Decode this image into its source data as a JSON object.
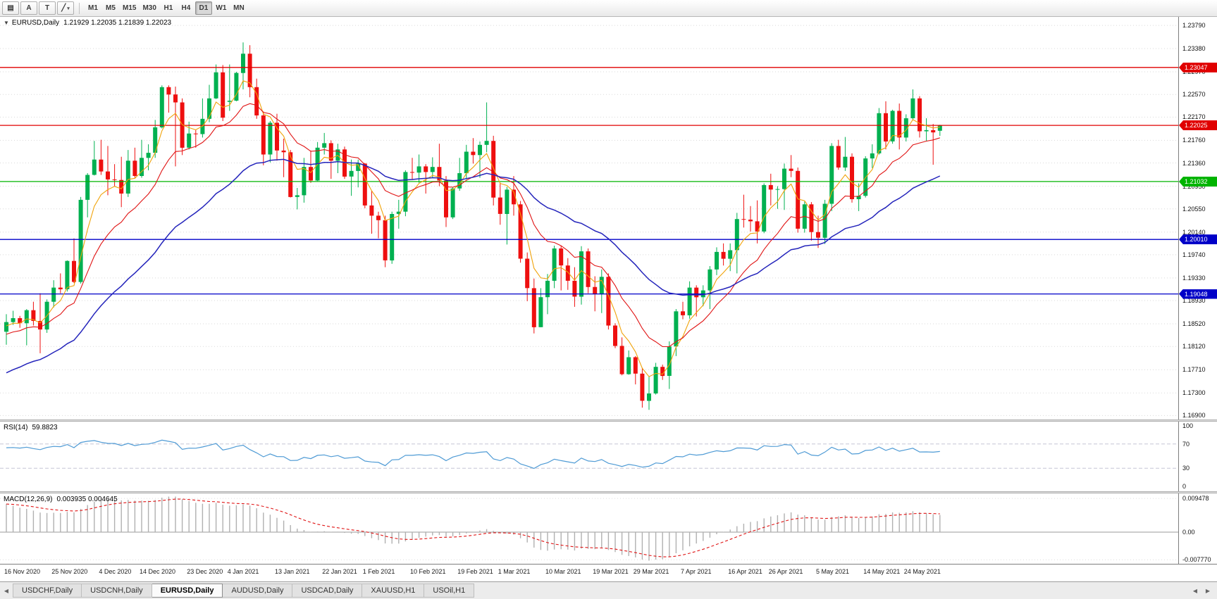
{
  "toolbar": {
    "icons": [
      {
        "name": "chart-window-menu-icon",
        "glyph": "▤"
      },
      {
        "name": "arrow-tool-icon",
        "glyph": "A"
      },
      {
        "name": "text-tool-icon",
        "glyph": "T"
      },
      {
        "name": "drawing-tool-icon",
        "glyph": "╱"
      },
      {
        "name": "chevron-down-icon",
        "glyph": "▾"
      }
    ],
    "timeframes": [
      "M1",
      "M5",
      "M15",
      "M30",
      "H1",
      "H4",
      "D1",
      "W1",
      "MN"
    ],
    "active_timeframe": "D1"
  },
  "chart": {
    "marker_icon": "▼",
    "symbol_label": "EURUSD,Daily",
    "ohlc": "1.21929 1.22035 1.21839 1.22023",
    "up_color": "#00b050",
    "down_color": "#ee0f0f",
    "price_min": 1.1683,
    "price_max": 1.2394,
    "price_axis_ticks": [
      "1.23790",
      "1.23380",
      "1.22970",
      "1.22570",
      "1.22170",
      "1.21760",
      "1.21360",
      "1.20950",
      "1.20550",
      "1.20140",
      "1.19740",
      "1.19330",
      "1.18930",
      "1.18520",
      "1.18120",
      "1.17710",
      "1.17300",
      "1.16900"
    ],
    "levels": [
      {
        "label": "1.23047",
        "price": 1.23047,
        "color": "#e00000"
      },
      {
        "label": "1.22025",
        "price": 1.22025,
        "color": "#e00000"
      },
      {
        "label": "1.21032",
        "price": 1.21032,
        "color": "#00b400"
      },
      {
        "label": "1.20010",
        "price": 1.2001,
        "color": "#0000c8"
      },
      {
        "label": "1.19048",
        "price": 1.19048,
        "color": "#0000c8"
      }
    ],
    "moving_averages": [
      {
        "period": 5,
        "seed": 1.1845,
        "color": "#f0a30a",
        "width": 1.1
      },
      {
        "period": 13,
        "seed": 1.183,
        "color": "#e01414",
        "width": 1.1
      },
      {
        "period": 34,
        "seed": 1.176,
        "color": "#2424bb",
        "width": 1.5
      }
    ],
    "date_axis": [
      [
        0,
        "16 Nov 2020"
      ],
      [
        7,
        "25 Nov 2020"
      ],
      [
        14,
        "4 Dec 2020"
      ],
      [
        20,
        "14 Dec 2020"
      ],
      [
        27,
        "23 Dec 2020"
      ],
      [
        33,
        "4 Jan 2021"
      ],
      [
        40,
        "13 Jan 2021"
      ],
      [
        47,
        "22 Jan 2021"
      ],
      [
        53,
        "1 Feb 2021"
      ],
      [
        60,
        "10 Feb 2021"
      ],
      [
        67,
        "19 Feb 2021"
      ],
      [
        73,
        "1 Mar 2021"
      ],
      [
        80,
        "10 Mar 2021"
      ],
      [
        87,
        "19 Mar 2021"
      ],
      [
        93,
        "29 Mar 2021"
      ],
      [
        100,
        "7 Apr 2021"
      ],
      [
        107,
        "16 Apr 2021"
      ],
      [
        113,
        "26 Apr 2021"
      ],
      [
        120,
        "5 May 2021"
      ],
      [
        127,
        "14 May 2021"
      ],
      [
        133,
        "24 May 2021"
      ]
    ],
    "candles": [
      [
        1.1838,
        1.1869,
        1.1815,
        1.1855
      ],
      [
        1.1855,
        1.1875,
        1.185,
        1.1862
      ],
      [
        1.1862,
        1.1866,
        1.1845,
        1.1853
      ],
      [
        1.1853,
        1.1878,
        1.1814,
        1.1876
      ],
      [
        1.1876,
        1.1891,
        1.1849,
        1.1857
      ],
      [
        1.1857,
        1.1906,
        1.18,
        1.1842
      ],
      [
        1.1842,
        1.1895,
        1.1836,
        1.1891
      ],
      [
        1.1891,
        1.1929,
        1.1881,
        1.1916
      ],
      [
        1.1916,
        1.1941,
        1.1906,
        1.1913
      ],
      [
        1.1913,
        1.1964,
        1.1909,
        1.1963
      ],
      [
        1.1963,
        1.2003,
        1.1924,
        1.1926
      ],
      [
        1.1926,
        1.2076,
        1.1923,
        1.2071
      ],
      [
        1.2071,
        1.2118,
        1.204,
        1.2115
      ],
      [
        1.2115,
        1.2175,
        1.2114,
        1.2142
      ],
      [
        1.2142,
        1.2177,
        1.2115,
        1.2121
      ],
      [
        1.2121,
        1.2166,
        1.2079,
        1.2107
      ],
      [
        1.2107,
        1.2134,
        1.2095,
        1.2106
      ],
      [
        1.2106,
        1.2147,
        1.2058,
        1.2082
      ],
      [
        1.2082,
        1.2159,
        1.2076,
        1.214
      ],
      [
        1.214,
        1.2163,
        1.211,
        1.2113
      ],
      [
        1.2113,
        1.2177,
        1.211,
        1.2145
      ],
      [
        1.2145,
        1.2169,
        1.2123,
        1.2154
      ],
      [
        1.2154,
        1.2212,
        1.2145,
        1.2199
      ],
      [
        1.2199,
        1.2273,
        1.2197,
        1.227
      ],
      [
        1.227,
        1.2273,
        1.2225,
        1.2257
      ],
      [
        1.2257,
        1.2271,
        1.213,
        1.2243
      ],
      [
        1.2243,
        1.225,
        1.215,
        1.2163
      ],
      [
        1.2163,
        1.2209,
        1.216,
        1.2188
      ],
      [
        1.2188,
        1.2194,
        1.2163,
        1.2187
      ],
      [
        1.2187,
        1.225,
        1.2181,
        1.2214
      ],
      [
        1.2214,
        1.2274,
        1.2208,
        1.225
      ],
      [
        1.225,
        1.231,
        1.2249,
        1.2296
      ],
      [
        1.2296,
        1.2309,
        1.221,
        1.2216
      ],
      [
        1.2244,
        1.231,
        1.2228,
        1.2246
      ],
      [
        1.2246,
        1.2297,
        1.2245,
        1.2295
      ],
      [
        1.2295,
        1.2349,
        1.2266,
        1.2329
      ],
      [
        1.2329,
        1.2344,
        1.2252,
        1.227
      ],
      [
        1.227,
        1.2285,
        1.2214,
        1.222
      ],
      [
        1.222,
        1.2227,
        1.2132,
        1.2151
      ],
      [
        1.2151,
        1.221,
        1.2137,
        1.2207
      ],
      [
        1.2207,
        1.2223,
        1.214,
        1.2158
      ],
      [
        1.2158,
        1.2179,
        1.2111,
        1.2155
      ],
      [
        1.2155,
        1.2159,
        1.2075,
        1.2076
      ],
      [
        1.2076,
        1.2092,
        1.2054,
        1.2079
      ],
      [
        1.2079,
        1.2145,
        1.2066,
        1.2129
      ],
      [
        1.2129,
        1.2158,
        1.2101,
        1.2105
      ],
      [
        1.2105,
        1.2173,
        1.2104,
        1.2163
      ],
      [
        1.2163,
        1.2189,
        1.2151,
        1.2171
      ],
      [
        1.2171,
        1.2176,
        1.2108,
        1.214
      ],
      [
        1.214,
        1.217,
        1.2118,
        1.216
      ],
      [
        1.216,
        1.2165,
        1.2108,
        1.2112
      ],
      [
        1.2112,
        1.2142,
        1.2078,
        1.2122
      ],
      [
        1.2122,
        1.2142,
        1.2093,
        1.2135
      ],
      [
        1.2135,
        1.2136,
        1.2056,
        1.2061
      ],
      [
        1.2061,
        1.2087,
        1.2011,
        1.2043
      ],
      [
        1.2043,
        1.205,
        1.2003,
        1.2035
      ],
      [
        1.2035,
        1.2043,
        1.1952,
        1.1964
      ],
      [
        1.1964,
        1.205,
        1.1958,
        1.2046
      ],
      [
        1.2046,
        1.2071,
        1.202,
        1.205
      ],
      [
        1.205,
        1.2123,
        1.2042,
        1.212
      ],
      [
        1.212,
        1.2145,
        1.2106,
        1.2119
      ],
      [
        1.2119,
        1.2151,
        1.2101,
        1.213
      ],
      [
        1.213,
        1.2134,
        1.2082,
        1.212
      ],
      [
        1.212,
        1.2146,
        1.211,
        1.2129
      ],
      [
        1.2129,
        1.217,
        1.2095,
        1.2105
      ],
      [
        1.2105,
        1.2113,
        1.2023,
        1.204
      ],
      [
        1.204,
        1.2093,
        1.2037,
        1.2091
      ],
      [
        1.2091,
        1.2145,
        1.2087,
        1.2118
      ],
      [
        1.2118,
        1.2168,
        1.2107,
        1.2156
      ],
      [
        1.2156,
        1.218,
        1.2135,
        1.215
      ],
      [
        1.215,
        1.2174,
        1.211,
        1.2168
      ],
      [
        1.2168,
        1.2243,
        1.2155,
        1.2175
      ],
      [
        1.2175,
        1.2184,
        1.2061,
        1.2075
      ],
      [
        1.2075,
        1.2101,
        1.2027,
        1.2046
      ],
      [
        1.2046,
        1.2094,
        1.1992,
        1.2089
      ],
      [
        1.2089,
        1.2113,
        1.2043,
        1.2063
      ],
      [
        1.2063,
        1.2069,
        1.196,
        1.1967
      ],
      [
        1.1967,
        1.1978,
        1.1892,
        1.1915
      ],
      [
        1.1915,
        1.1932,
        1.1835,
        1.1846
      ],
      [
        1.1846,
        1.1915,
        1.1846,
        1.1899
      ],
      [
        1.1899,
        1.194,
        1.1869,
        1.1928
      ],
      [
        1.1928,
        1.199,
        1.1915,
        1.1985
      ],
      [
        1.1985,
        1.199,
        1.1911,
        1.1955
      ],
      [
        1.1955,
        1.1968,
        1.1912,
        1.1928
      ],
      [
        1.1928,
        1.1952,
        1.1882,
        1.19
      ],
      [
        1.19,
        1.1989,
        1.1886,
        1.198
      ],
      [
        1.198,
        1.1985,
        1.1906,
        1.1917
      ],
      [
        1.1917,
        1.1936,
        1.1874,
        1.1904
      ],
      [
        1.1904,
        1.1948,
        1.1871,
        1.1935
      ],
      [
        1.1935,
        1.1941,
        1.1842,
        1.1849
      ],
      [
        1.1849,
        1.1853,
        1.1809,
        1.1813
      ],
      [
        1.1813,
        1.1828,
        1.1761,
        1.1763
      ],
      [
        1.1763,
        1.1805,
        1.1762,
        1.1793
      ],
      [
        1.1793,
        1.1795,
        1.1745,
        1.1764
      ],
      [
        1.1764,
        1.1774,
        1.1704,
        1.1716
      ],
      [
        1.1716,
        1.176,
        1.17,
        1.1729
      ],
      [
        1.1729,
        1.1783,
        1.1727,
        1.1776
      ],
      [
        1.1776,
        1.178,
        1.1753,
        1.176
      ],
      [
        1.176,
        1.1821,
        1.1737,
        1.1812
      ],
      [
        1.1812,
        1.1878,
        1.1795,
        1.1874
      ],
      [
        1.1874,
        1.1891,
        1.186,
        1.1867
      ],
      [
        1.1867,
        1.1927,
        1.1861,
        1.1916
      ],
      [
        1.1916,
        1.192,
        1.1865,
        1.1899
      ],
      [
        1.1899,
        1.192,
        1.1883,
        1.1911
      ],
      [
        1.1911,
        1.1954,
        1.1878,
        1.1948
      ],
      [
        1.1948,
        1.1987,
        1.1938,
        1.1979
      ],
      [
        1.1979,
        1.1994,
        1.1955,
        1.1967
      ],
      [
        1.1967,
        1.1994,
        1.1945,
        1.1982
      ],
      [
        1.1982,
        1.2048,
        1.1941,
        1.2037
      ],
      [
        1.2037,
        1.208,
        1.2022,
        1.2036
      ],
      [
        1.2036,
        1.206,
        1.2015,
        1.2033
      ],
      [
        1.2033,
        1.207,
        1.1994,
        1.2015
      ],
      [
        1.2015,
        1.21,
        1.2012,
        1.2097
      ],
      [
        1.2097,
        1.2117,
        1.2061,
        1.2089
      ],
      [
        1.2089,
        1.2095,
        1.2055,
        1.209
      ],
      [
        1.209,
        1.2135,
        1.2053,
        1.2126
      ],
      [
        1.2126,
        1.215,
        1.2111,
        1.2122
      ],
      [
        1.2122,
        1.2128,
        1.2013,
        1.202
      ],
      [
        1.202,
        1.2068,
        1.2013,
        1.2063
      ],
      [
        1.2063,
        1.2067,
        1.1999,
        1.2014
      ],
      [
        1.2014,
        1.2043,
        1.1986,
        1.2004
      ],
      [
        1.2004,
        1.2071,
        1.1993,
        1.2064
      ],
      [
        1.2064,
        1.2171,
        1.2051,
        1.2166
      ],
      [
        1.2166,
        1.2177,
        1.2124,
        1.2128
      ],
      [
        1.2128,
        1.2182,
        1.2122,
        1.2147
      ],
      [
        1.2147,
        1.2153,
        1.2066,
        1.2072
      ],
      [
        1.2072,
        1.21,
        1.2051,
        1.2078
      ],
      [
        1.2078,
        1.2148,
        1.2075,
        1.2144
      ],
      [
        1.2144,
        1.2169,
        1.2127,
        1.2153
      ],
      [
        1.2153,
        1.2233,
        1.2151,
        1.2224
      ],
      [
        1.2224,
        1.2245,
        1.216,
        1.2174
      ],
      [
        1.2174,
        1.223,
        1.217,
        1.2228
      ],
      [
        1.2228,
        1.2241,
        1.216,
        1.2181
      ],
      [
        1.2181,
        1.2222,
        1.2174,
        1.2215
      ],
      [
        1.2215,
        1.2266,
        1.2212,
        1.225
      ],
      [
        1.225,
        1.2254,
        1.2181,
        1.2192
      ],
      [
        1.2192,
        1.2215,
        1.2175,
        1.2194
      ],
      [
        1.2194,
        1.2205,
        1.2133,
        1.219
      ],
      [
        1.21929,
        1.22035,
        1.21839,
        1.22023
      ]
    ]
  },
  "rsi": {
    "name": "RSI(14)",
    "value": "59.8823",
    "color": "#4f9bd5",
    "axis_ticks": [
      "100",
      "70",
      "30",
      "0"
    ],
    "levels": [
      70,
      30
    ],
    "seed_gain": 0.003,
    "seed_loss": 0.0017
  },
  "macd": {
    "name": "MACD(12,26,9)",
    "values": "0.003935 0.004645",
    "hist_color": "#b0b0b0",
    "signal_color": "#e01414",
    "axis_ticks": [
      "0.009478",
      "0.00",
      "-0.007770"
    ],
    "fast": 12,
    "slow": 26,
    "signal": 9,
    "seed_fast": 1.185,
    "seed_slow": 1.1765
  },
  "tabs": {
    "left_scroll": "◀",
    "right_scroll_left": "◀",
    "right_scroll_right": "▶",
    "items": [
      "USDCHF,Daily",
      "USDCNH,Daily",
      "EURUSD,Daily",
      "AUDUSD,Daily",
      "USDCAD,Daily",
      "XAUUSD,H1",
      "USOil,H1"
    ],
    "active": "EURUSD,Daily"
  }
}
